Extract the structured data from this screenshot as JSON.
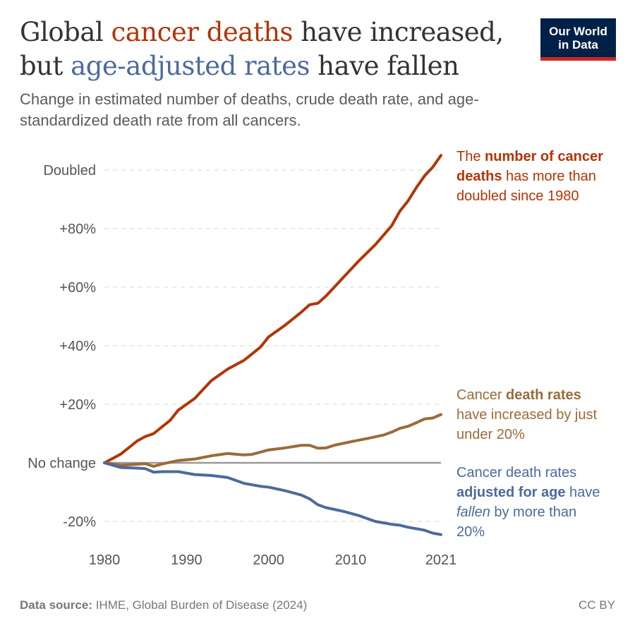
{
  "title": {
    "part1": "Global ",
    "highlight1": "cancer deaths",
    "part2": " have increased,",
    "line2_part1": "but ",
    "highlight2": "age-adjusted rates",
    "line2_part2": " have fallen"
  },
  "subtitle": "Change in estimated number of deaths, crude death rate, and age-standardized death rate from all cancers.",
  "logo": {
    "line1": "Our World",
    "line2": "in Data",
    "bg": "#002147",
    "stripe": "#ce261e"
  },
  "annotations": {
    "deaths": {
      "p1": "The ",
      "b1": "number of cancer deaths",
      "p2": " has more than doubled since 1980"
    },
    "crude": {
      "p1": "Cancer ",
      "b1": "death rates",
      "p2": " have increased by just under 20%"
    },
    "age": {
      "p1": "Cancer death rates ",
      "b1": "adjusted for age",
      "p2": " have ",
      "i1": "fallen",
      "p3": " by more than 20%"
    }
  },
  "footer": {
    "source_label": "Data source:",
    "source": " IHME, Global Burden of Disease (2024)",
    "license": "CC BY"
  },
  "chart_data": {
    "type": "line",
    "xlim": [
      1980,
      2021
    ],
    "ylim": [
      -25,
      105
    ],
    "x_ticks": [
      "1980",
      "1990",
      "2000",
      "2010",
      "2021"
    ],
    "x_tick_values": [
      1980,
      1990,
      2000,
      2010,
      2021
    ],
    "y_ticks": [
      {
        "v": 100,
        "label": "Doubled"
      },
      {
        "v": 80,
        "label": "+80%"
      },
      {
        "v": 60,
        "label": "+60%"
      },
      {
        "v": 40,
        "label": "+40%"
      },
      {
        "v": 20,
        "label": "+20%"
      },
      {
        "v": 0,
        "label": "No change"
      },
      {
        "v": -20,
        "label": "-20%"
      }
    ],
    "grid": "horizontal-dashed",
    "series": [
      {
        "key": "deaths",
        "color": "#b13507",
        "points": [
          [
            1980,
            0
          ],
          [
            1982,
            3
          ],
          [
            1984,
            7.5
          ],
          [
            1985,
            9
          ],
          [
            1986,
            10
          ],
          [
            1988,
            14.5
          ],
          [
            1989,
            18
          ],
          [
            1991,
            22
          ],
          [
            1993,
            28
          ],
          [
            1995,
            32
          ],
          [
            1997,
            35
          ],
          [
            1999,
            39.5
          ],
          [
            2000,
            43
          ],
          [
            2002,
            47
          ],
          [
            2004,
            51.5
          ],
          [
            2005,
            54
          ],
          [
            2006,
            54.5
          ],
          [
            2007,
            57
          ],
          [
            2009,
            63
          ],
          [
            2011,
            69
          ],
          [
            2013,
            74.5
          ],
          [
            2015,
            81
          ],
          [
            2016,
            86
          ],
          [
            2017,
            89.5
          ],
          [
            2018,
            94
          ],
          [
            2019,
            98
          ],
          [
            2020,
            101
          ],
          [
            2021,
            105
          ]
        ]
      },
      {
        "key": "crude",
        "color": "#9a6b3a",
        "points": [
          [
            1980,
            0
          ],
          [
            1982,
            -0.8
          ],
          [
            1985,
            -0.3
          ],
          [
            1986,
            -1.2
          ],
          [
            1987,
            -0.4
          ],
          [
            1989,
            0.8
          ],
          [
            1991,
            1.3
          ],
          [
            1993,
            2.4
          ],
          [
            1995,
            3.2
          ],
          [
            1997,
            2.7
          ],
          [
            1998,
            2.9
          ],
          [
            2000,
            4.4
          ],
          [
            2002,
            5.1
          ],
          [
            2004,
            6
          ],
          [
            2005,
            6
          ],
          [
            2006,
            5
          ],
          [
            2007,
            5.1
          ],
          [
            2008,
            6
          ],
          [
            2010,
            7.2
          ],
          [
            2012,
            8.3
          ],
          [
            2014,
            9.5
          ],
          [
            2015,
            10.5
          ],
          [
            2016,
            11.8
          ],
          [
            2017,
            12.5
          ],
          [
            2018,
            13.7
          ],
          [
            2019,
            15
          ],
          [
            2020,
            15.3
          ],
          [
            2021,
            16.5
          ]
        ]
      },
      {
        "key": "age",
        "color": "#4c6a9c",
        "points": [
          [
            1980,
            0
          ],
          [
            1982,
            -1.6
          ],
          [
            1984,
            -1.8
          ],
          [
            1985,
            -2
          ],
          [
            1986,
            -3.2
          ],
          [
            1987,
            -3
          ],
          [
            1989,
            -3
          ],
          [
            1991,
            -4
          ],
          [
            1993,
            -4.3
          ],
          [
            1995,
            -5
          ],
          [
            1997,
            -7
          ],
          [
            1999,
            -8
          ],
          [
            2000,
            -8.3
          ],
          [
            2002,
            -9.5
          ],
          [
            2004,
            -11
          ],
          [
            2005,
            -12.3
          ],
          [
            2006,
            -14.3
          ],
          [
            2007,
            -15.3
          ],
          [
            2009,
            -16.5
          ],
          [
            2011,
            -18
          ],
          [
            2013,
            -20
          ],
          [
            2015,
            -21
          ],
          [
            2016,
            -21.3
          ],
          [
            2017,
            -22
          ],
          [
            2019,
            -23
          ],
          [
            2020,
            -24
          ],
          [
            2021,
            -24.5
          ]
        ]
      }
    ]
  }
}
